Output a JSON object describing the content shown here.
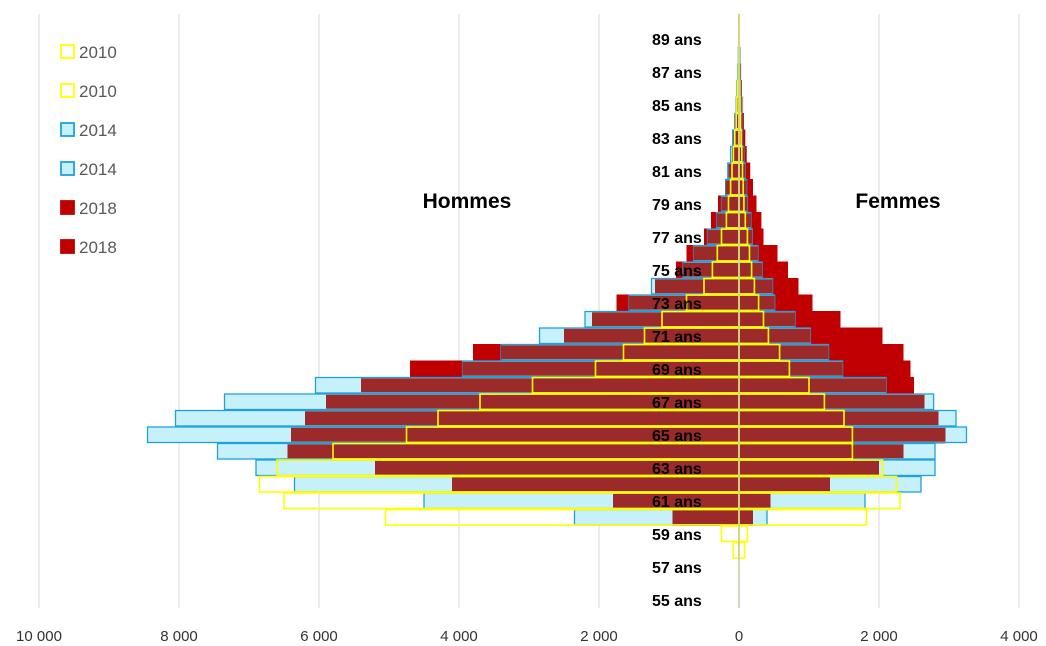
{
  "chart_data": {
    "type": "bar",
    "orientation": "horizontal",
    "layout": "population-pyramid",
    "ages": [
      55,
      56,
      57,
      58,
      59,
      60,
      61,
      62,
      63,
      64,
      65,
      66,
      67,
      68,
      69,
      70,
      71,
      72,
      73,
      74,
      75,
      76,
      77,
      78,
      79,
      80,
      81,
      82,
      83,
      84,
      85,
      86,
      87,
      88,
      89,
      90
    ],
    "age_labels": [
      "55 ans",
      "57 ans",
      "59 ans",
      "61 ans",
      "63 ans",
      "65 ans",
      "67 ans",
      "69 ans",
      "71 ans",
      "73 ans",
      "75 ans",
      "77 ans",
      "79 ans",
      "81 ans",
      "83 ans",
      "85 ans",
      "87 ans",
      "89 ans"
    ],
    "side_labels": {
      "left": "Hommes",
      "right": "Femmes"
    },
    "x_ticks": [
      "10 000",
      "8 000",
      "6 000",
      "4 000",
      "2 000",
      "0",
      "2 000",
      "4 000"
    ],
    "xlim": [
      -10000,
      4000
    ],
    "grid": true,
    "legend_position": "top-left",
    "legend": [
      {
        "label": "2010",
        "color": "#FFFF00",
        "filled": false
      },
      {
        "label": "2010",
        "color": "#FFFF00",
        "filled": false
      },
      {
        "label": "2014",
        "color": "#1FA2DC",
        "fill": "#C6F0FA",
        "filled": true
      },
      {
        "label": "2014",
        "color": "#1FA2DC",
        "fill": "#C6F0FA",
        "filled": true
      },
      {
        "label": "2018",
        "color": "#C00000",
        "filled": true
      },
      {
        "label": "2018",
        "color": "#C00000",
        "filled": true
      }
    ],
    "series": [
      {
        "name": "2018",
        "style": "solid",
        "color": "#C00000",
        "hommes": [
          0,
          0,
          0,
          0,
          0,
          950,
          1800,
          4100,
          5200,
          6450,
          6400,
          6200,
          5900,
          5400,
          4700,
          3800,
          2500,
          2100,
          1750,
          1200,
          900,
          750,
          500,
          400,
          300,
          200,
          150,
          100,
          80,
          60,
          40,
          30,
          20,
          10,
          5,
          3
        ],
        "femmes": [
          0,
          0,
          0,
          0,
          0,
          200,
          450,
          1300,
          2000,
          2350,
          2950,
          2850,
          2650,
          2500,
          2450,
          2350,
          2050,
          1450,
          1050,
          850,
          700,
          550,
          350,
          320,
          250,
          200,
          160,
          110,
          90,
          70,
          50,
          40,
          30,
          20,
          10,
          5
        ]
      },
      {
        "name": "2014",
        "style": "filled",
        "color": "#1FA2DC",
        "fill": "#C6F0FA",
        "hommes": [
          0,
          0,
          0,
          0,
          0,
          2350,
          4500,
          6350,
          6900,
          7450,
          8450,
          8050,
          7350,
          6050,
          3950,
          3400,
          2850,
          2200,
          1570,
          1250,
          800,
          650,
          450,
          320,
          250,
          190,
          160,
          120,
          90,
          60,
          40,
          30,
          20,
          10,
          5,
          3
        ],
        "femmes": [
          0,
          0,
          0,
          0,
          0,
          400,
          1800,
          2600,
          2800,
          2800,
          3250,
          3100,
          2780,
          2100,
          1480,
          1280,
          1020,
          800,
          510,
          480,
          330,
          270,
          190,
          170,
          120,
          110,
          90,
          70,
          50,
          40,
          30,
          20,
          15,
          10,
          5,
          3
        ],
        "dark_overlay": true
      },
      {
        "name": "2010",
        "style": "outline",
        "color": "#FFFF00",
        "hommes": [
          0,
          0,
          0,
          80,
          250,
          5050,
          6500,
          6850,
          6600,
          5800,
          4750,
          4300,
          3700,
          2950,
          2050,
          1650,
          1350,
          1100,
          750,
          500,
          380,
          310,
          250,
          180,
          150,
          120,
          100,
          80,
          60,
          40,
          30,
          20,
          10,
          5,
          3,
          2
        ],
        "femmes": [
          0,
          0,
          0,
          80,
          120,
          1820,
          2300,
          2250,
          2050,
          1620,
          1620,
          1500,
          1220,
          1000,
          720,
          580,
          420,
          350,
          280,
          220,
          180,
          150,
          120,
          90,
          70,
          60,
          50,
          40,
          30,
          20,
          15,
          10,
          5,
          3,
          2,
          1
        ]
      }
    ]
  }
}
